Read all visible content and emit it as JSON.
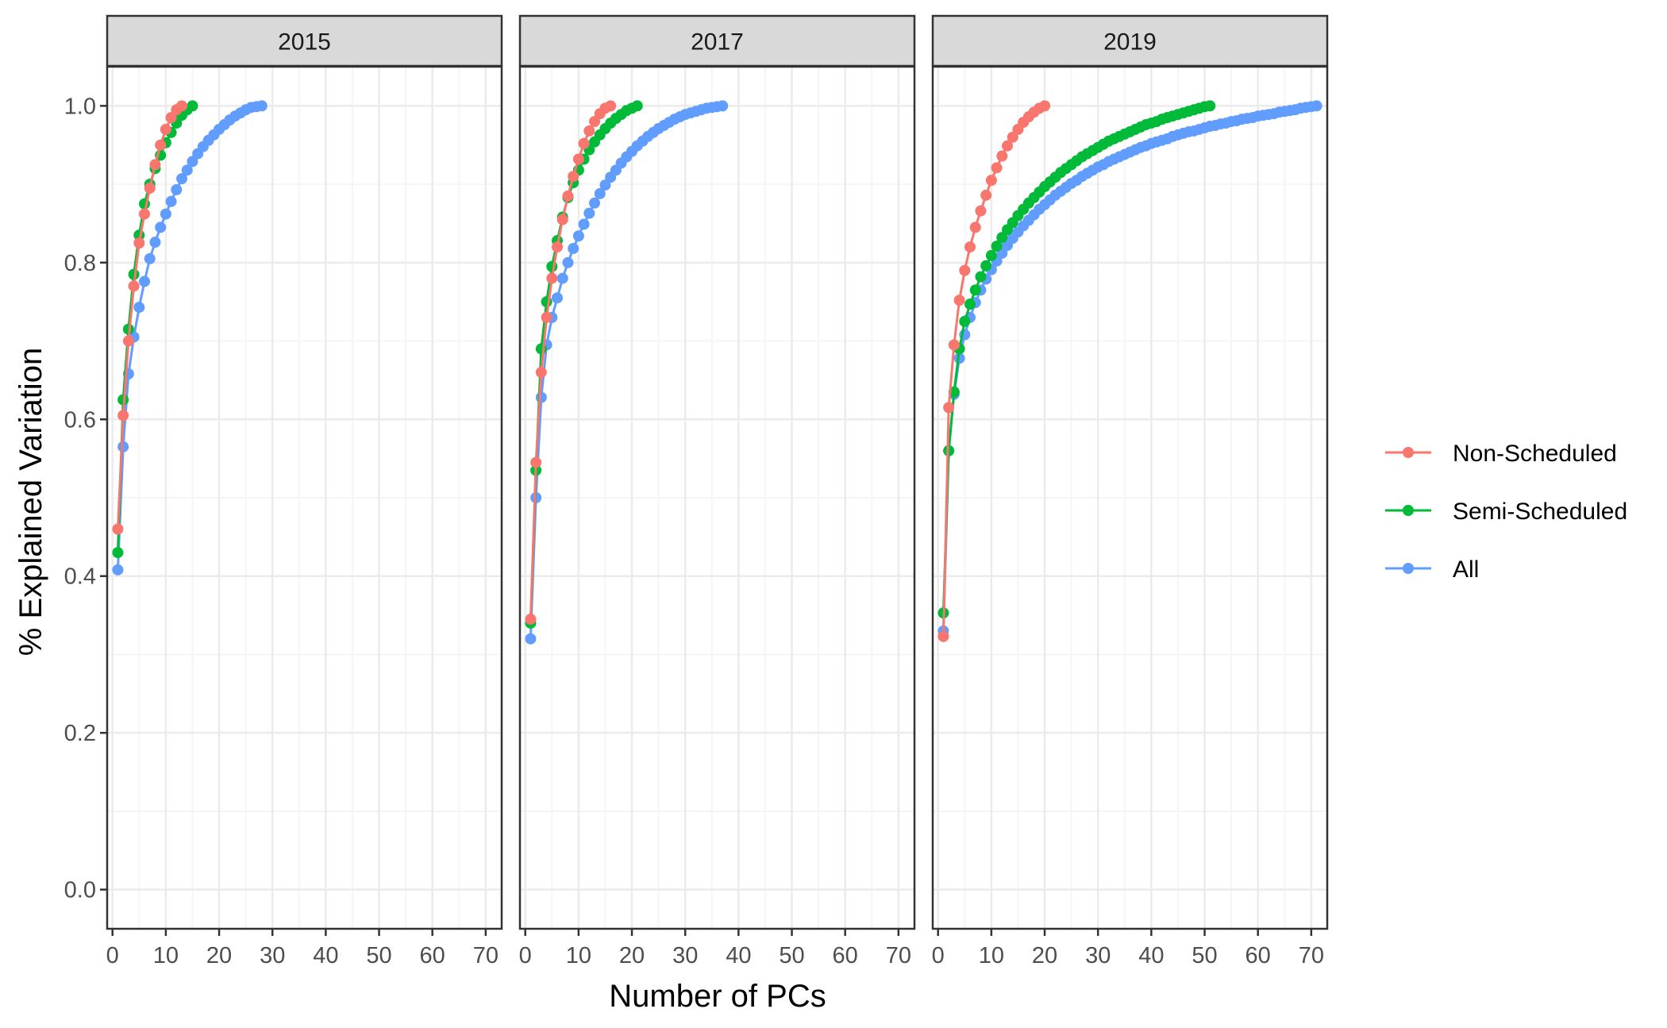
{
  "chart_data": {
    "type": "line",
    "xlabel": "Number of PCs",
    "ylabel": "% Explained Variation",
    "xlim": [
      -1,
      73
    ],
    "ylim": [
      -0.05,
      1.05
    ],
    "x_ticks": [
      0,
      10,
      20,
      30,
      40,
      50,
      60,
      70
    ],
    "y_ticks": [
      0.0,
      0.2,
      0.4,
      0.6,
      0.8,
      1.0
    ],
    "y_tick_labels": [
      "0.0",
      "0.2",
      "0.4",
      "0.6",
      "0.8",
      "1.0"
    ],
    "grid": true,
    "legend_position": "right",
    "colors": {
      "Non-Scheduled": "#F8766D",
      "Semi-Scheduled": "#00BA38",
      "All": "#619CFF",
      "strip": "#d9d9d9",
      "grid_major": "#ebebeb",
      "grid_minor": "#f5f5f5",
      "border": "#333333"
    },
    "legend": [
      "Non-Scheduled",
      "Semi-Scheduled",
      "All"
    ],
    "panels": [
      {
        "title": "2015",
        "series": [
          {
            "name": "Non-Scheduled",
            "x": [
              1,
              2,
              3,
              4,
              5,
              6,
              7,
              8,
              9,
              10,
              11,
              12,
              13
            ],
            "y": [
              0.46,
              0.605,
              0.7,
              0.77,
              0.825,
              0.862,
              0.895,
              0.925,
              0.95,
              0.97,
              0.985,
              0.995,
              1.0
            ]
          },
          {
            "name": "Semi-Scheduled",
            "x": [
              1,
              2,
              3,
              4,
              5,
              6,
              7,
              8,
              9,
              10,
              11,
              12,
              13,
              14,
              15
            ],
            "y": [
              0.43,
              0.625,
              0.715,
              0.785,
              0.835,
              0.875,
              0.9,
              0.92,
              0.937,
              0.953,
              0.966,
              0.978,
              0.988,
              0.995,
              1.0
            ]
          },
          {
            "name": "All",
            "x": [
              1,
              2,
              3,
              4,
              5,
              6,
              7,
              8,
              9,
              10,
              11,
              12,
              13,
              14,
              15,
              16,
              17,
              18,
              19,
              20,
              21,
              22,
              23,
              24,
              25,
              26,
              27,
              28
            ],
            "y": [
              0.408,
              0.565,
              0.658,
              0.705,
              0.743,
              0.776,
              0.805,
              0.826,
              0.845,
              0.862,
              0.878,
              0.893,
              0.907,
              0.918,
              0.929,
              0.939,
              0.948,
              0.956,
              0.963,
              0.97,
              0.976,
              0.982,
              0.987,
              0.991,
              0.995,
              0.998,
              0.999,
              1.0
            ]
          }
        ]
      },
      {
        "title": "2017",
        "series": [
          {
            "name": "Non-Scheduled",
            "x": [
              1,
              2,
              3,
              4,
              5,
              6,
              7,
              8,
              9,
              10,
              11,
              12,
              13,
              14,
              15,
              16
            ],
            "y": [
              0.345,
              0.545,
              0.66,
              0.73,
              0.78,
              0.82,
              0.855,
              0.885,
              0.91,
              0.932,
              0.952,
              0.968,
              0.98,
              0.99,
              0.997,
              1.0
            ]
          },
          {
            "name": "Semi-Scheduled",
            "x": [
              1,
              2,
              3,
              4,
              5,
              6,
              7,
              8,
              9,
              10,
              11,
              12,
              13,
              14,
              15,
              16,
              17,
              18,
              19,
              20,
              21
            ],
            "y": [
              0.34,
              0.535,
              0.69,
              0.75,
              0.795,
              0.828,
              0.858,
              0.883,
              0.902,
              0.918,
              0.932,
              0.944,
              0.954,
              0.963,
              0.971,
              0.978,
              0.984,
              0.989,
              0.994,
              0.997,
              1.0
            ]
          },
          {
            "name": "All",
            "x": [
              1,
              2,
              3,
              4,
              5,
              6,
              7,
              8,
              9,
              10,
              11,
              12,
              13,
              14,
              15,
              16,
              17,
              18,
              19,
              20,
              21,
              22,
              23,
              24,
              25,
              26,
              27,
              28,
              29,
              30,
              31,
              32,
              33,
              34,
              35,
              36,
              37
            ],
            "y": [
              0.32,
              0.5,
              0.628,
              0.695,
              0.73,
              0.755,
              0.78,
              0.8,
              0.818,
              0.834,
              0.849,
              0.863,
              0.876,
              0.888,
              0.899,
              0.909,
              0.918,
              0.927,
              0.935,
              0.942,
              0.949,
              0.955,
              0.961,
              0.966,
              0.971,
              0.975,
              0.979,
              0.983,
              0.986,
              0.989,
              0.991,
              0.993,
              0.995,
              0.997,
              0.998,
              0.999,
              1.0
            ]
          }
        ]
      },
      {
        "title": "2019",
        "series": [
          {
            "name": "Non-Scheduled",
            "x": [
              1,
              2,
              3,
              4,
              5,
              6,
              7,
              8,
              9,
              10,
              11,
              12,
              13,
              14,
              15,
              16,
              17,
              18,
              19,
              20
            ],
            "y": [
              0.323,
              0.615,
              0.695,
              0.752,
              0.79,
              0.82,
              0.845,
              0.866,
              0.886,
              0.905,
              0.921,
              0.936,
              0.949,
              0.96,
              0.97,
              0.979,
              0.986,
              0.992,
              0.997,
              1.0
            ]
          },
          {
            "name": "Semi-Scheduled",
            "x": [
              1,
              2,
              3,
              4,
              5,
              6,
              7,
              8,
              9,
              10,
              11,
              12,
              13,
              14,
              15,
              16,
              17,
              18,
              19,
              20,
              21,
              22,
              23,
              24,
              25,
              26,
              27,
              28,
              29,
              30,
              31,
              32,
              33,
              34,
              35,
              36,
              37,
              38,
              39,
              40,
              41,
              42,
              43,
              44,
              45,
              46,
              47,
              48,
              49,
              50,
              51
            ],
            "y": [
              0.353,
              0.56,
              0.635,
              0.69,
              0.725,
              0.747,
              0.765,
              0.782,
              0.796,
              0.809,
              0.821,
              0.832,
              0.842,
              0.851,
              0.86,
              0.868,
              0.876,
              0.883,
              0.89,
              0.897,
              0.903,
              0.909,
              0.915,
              0.92,
              0.925,
              0.93,
              0.935,
              0.939,
              0.943,
              0.947,
              0.951,
              0.955,
              0.958,
              0.961,
              0.964,
              0.967,
              0.97,
              0.973,
              0.976,
              0.978,
              0.98,
              0.983,
              0.985,
              0.987,
              0.989,
              0.991,
              0.993,
              0.995,
              0.997,
              0.999,
              1.0
            ]
          },
          {
            "name": "All",
            "x": [
              1,
              2,
              3,
              4,
              5,
              6,
              7,
              8,
              9,
              10,
              11,
              12,
              13,
              14,
              15,
              16,
              17,
              18,
              19,
              20,
              21,
              22,
              23,
              24,
              25,
              26,
              27,
              28,
              29,
              30,
              31,
              32,
              33,
              34,
              35,
              36,
              37,
              38,
              39,
              40,
              41,
              42,
              43,
              44,
              45,
              46,
              47,
              48,
              49,
              50,
              51,
              52,
              53,
              54,
              55,
              56,
              57,
              58,
              59,
              60,
              61,
              62,
              63,
              64,
              65,
              66,
              67,
              68,
              69,
              70,
              71
            ],
            "y": [
              0.33,
              0.56,
              0.632,
              0.678,
              0.708,
              0.73,
              0.749,
              0.765,
              0.779,
              0.791,
              0.802,
              0.812,
              0.822,
              0.831,
              0.839,
              0.847,
              0.854,
              0.861,
              0.868,
              0.874,
              0.88,
              0.886,
              0.891,
              0.896,
              0.901,
              0.905,
              0.91,
              0.914,
              0.918,
              0.922,
              0.925,
              0.929,
              0.932,
              0.935,
              0.938,
              0.941,
              0.944,
              0.947,
              0.949,
              0.952,
              0.954,
              0.956,
              0.958,
              0.961,
              0.963,
              0.965,
              0.967,
              0.968,
              0.97,
              0.972,
              0.974,
              0.975,
              0.977,
              0.978,
              0.98,
              0.981,
              0.983,
              0.984,
              0.985,
              0.987,
              0.988,
              0.989,
              0.99,
              0.992,
              0.993,
              0.994,
              0.995,
              0.997,
              0.998,
              0.999,
              1.0
            ]
          }
        ]
      }
    ]
  }
}
